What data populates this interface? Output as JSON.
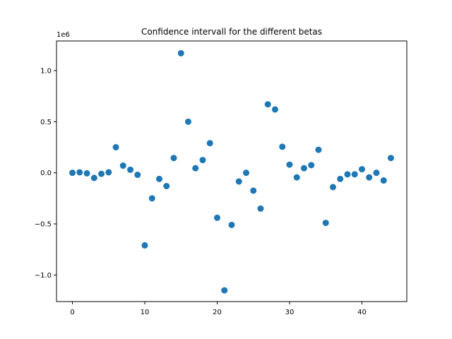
{
  "chart_data": {
    "type": "scatter",
    "title": "Confidence intervall for the different betas",
    "xlabel": "",
    "ylabel": "",
    "y_offset_label": "1e6",
    "xlim": [
      -2.2,
      46.2
    ],
    "ylim": [
      -1.26,
      1.29
    ],
    "xticks": [
      0,
      10,
      20,
      30,
      40
    ],
    "xtick_labels": [
      "0",
      "10",
      "20",
      "30",
      "40"
    ],
    "yticks": [
      -1.0,
      -0.5,
      0.0,
      0.5,
      1.0
    ],
    "ytick_labels": [
      "−1.0",
      "−0.5",
      "0.0",
      "0.5",
      "1.0"
    ],
    "grid": false,
    "marker_color": "#1f77b4",
    "x": [
      0,
      1,
      2,
      3,
      4,
      5,
      6,
      7,
      8,
      9,
      10,
      11,
      12,
      13,
      14,
      15,
      16,
      17,
      18,
      19,
      20,
      21,
      22,
      23,
      24,
      25,
      26,
      27,
      28,
      29,
      30,
      31,
      32,
      33,
      34,
      35,
      36,
      37,
      38,
      39,
      40,
      41,
      42,
      43,
      44
    ],
    "y": [
      0.0,
      0.005,
      -0.005,
      -0.05,
      -0.01,
      0.005,
      0.25,
      0.07,
      0.03,
      -0.02,
      -0.71,
      -0.25,
      -0.06,
      -0.13,
      0.145,
      1.17,
      0.5,
      0.045,
      0.125,
      0.29,
      -0.44,
      -1.15,
      -0.51,
      -0.085,
      0.0,
      -0.175,
      -0.35,
      0.67,
      0.62,
      0.255,
      0.08,
      -0.045,
      0.045,
      0.075,
      0.225,
      -0.49,
      -0.14,
      -0.06,
      -0.015,
      -0.015,
      0.035,
      -0.045,
      0.0,
      -0.075,
      0.145
    ]
  }
}
